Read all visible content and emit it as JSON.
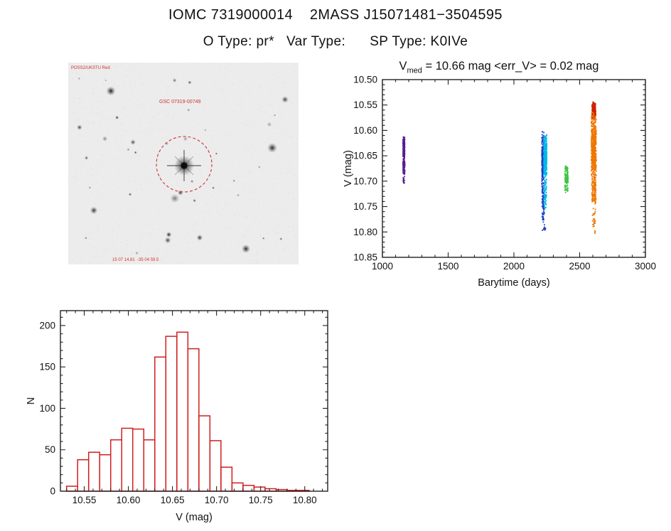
{
  "page": {
    "title": "IOMC 7319000014    2MASS J15071481−3504595",
    "subtitle": "O Type: pr*   Var Type:      SP Type: K0IVe"
  },
  "finding_chart": {
    "label": "GSC 07319-00749",
    "corner_label": "POSS2/UKSTU Red",
    "bottom_label": "15 07 14.81  -35 04 59.5",
    "background": "#ececec",
    "circle_color": "#d22f2f"
  },
  "chart_data": [
    {
      "id": "lightcurve",
      "type": "scatter",
      "title": {
        "v": "V",
        "sub": "med",
        "rest": " = 10.66 mag <err_V> = 0.02 mag"
      },
      "v_med_mag": 10.66,
      "err_v_mag": 0.02,
      "xlabel": "Barytime (days)",
      "ylabel": "V (mag)",
      "xlim": [
        1000,
        3000
      ],
      "ylim": [
        10.5,
        10.85
      ],
      "y_inverted": true,
      "x_ticks": [
        1000,
        1500,
        2000,
        2500,
        3000
      ],
      "y_ticks": [
        10.5,
        10.55,
        10.6,
        10.65,
        10.7,
        10.75,
        10.8,
        10.85
      ],
      "clusters": [
        {
          "name": "epoch-1-purple",
          "color": "#5A1F8F",
          "x": [
            1156,
            1170
          ],
          "v": [
            10.612,
            10.66
          ],
          "n": 150
        },
        {
          "name": "epoch-1-purple",
          "color": "#5A1F8F",
          "x": [
            1156,
            1170
          ],
          "v": [
            10.65,
            10.692
          ],
          "n": 110
        },
        {
          "name": "epoch-1-purple-faint",
          "color": "#5A1F8F",
          "x": [
            1158,
            1168
          ],
          "v": [
            10.692,
            10.706
          ],
          "n": 18
        },
        {
          "name": "epoch-2-blue",
          "color": "#1E3FC0",
          "x": [
            2212,
            2228
          ],
          "v": [
            10.598,
            10.72
          ],
          "n": 300
        },
        {
          "name": "epoch-2-blue-tail",
          "color": "#1E3FC0",
          "x": [
            2214,
            2230
          ],
          "v": [
            10.7,
            10.79
          ],
          "n": 90
        },
        {
          "name": "epoch-2-cyan",
          "color": "#00B8E8",
          "x": [
            2227,
            2250
          ],
          "v": [
            10.605,
            10.7
          ],
          "n": 330
        },
        {
          "name": "epoch-2-cyan-tail",
          "color": "#00B8E8",
          "x": [
            2228,
            2248
          ],
          "v": [
            10.69,
            10.76
          ],
          "n": 80
        },
        {
          "name": "epoch-2-outliers",
          "color": "#1E3FC0",
          "x": [
            2216,
            2246
          ],
          "v": [
            10.78,
            10.805
          ],
          "n": 12
        },
        {
          "name": "epoch-3-green",
          "color": "#3EC43E",
          "x": [
            2388,
            2412
          ],
          "v": [
            10.663,
            10.73
          ],
          "n": 130
        },
        {
          "name": "epoch-4-red-bright",
          "color": "#CC2200",
          "x": [
            2595,
            2622
          ],
          "v": [
            10.543,
            10.58
          ],
          "n": 220
        },
        {
          "name": "epoch-4-orange",
          "color": "#EE7700",
          "x": [
            2589,
            2626
          ],
          "v": [
            10.56,
            10.7
          ],
          "n": 520
        },
        {
          "name": "epoch-4-orange-tail",
          "color": "#EE7700",
          "x": [
            2592,
            2624
          ],
          "v": [
            10.68,
            10.75
          ],
          "n": 140
        },
        {
          "name": "epoch-4-orange-faint",
          "color": "#EE7700",
          "x": [
            2596,
            2620
          ],
          "v": [
            10.75,
            10.805
          ],
          "n": 30
        }
      ]
    },
    {
      "id": "histogram",
      "type": "bar",
      "xlabel": "V (mag)",
      "ylabel": "N",
      "xlim": [
        10.523,
        10.826
      ],
      "ylim": [
        0,
        218
      ],
      "x_ticks": [
        10.55,
        10.6,
        10.65,
        10.7,
        10.75,
        10.8
      ],
      "y_ticks": [
        0,
        50,
        100,
        150,
        200
      ],
      "bin_start": 10.53,
      "bin_width": 0.0125,
      "counts": [
        6,
        38,
        47,
        44,
        62,
        76,
        75,
        62,
        162,
        187,
        192,
        172,
        91,
        61,
        29,
        10,
        7,
        5,
        3,
        2,
        1,
        1
      ],
      "color": "#d02020"
    }
  ]
}
